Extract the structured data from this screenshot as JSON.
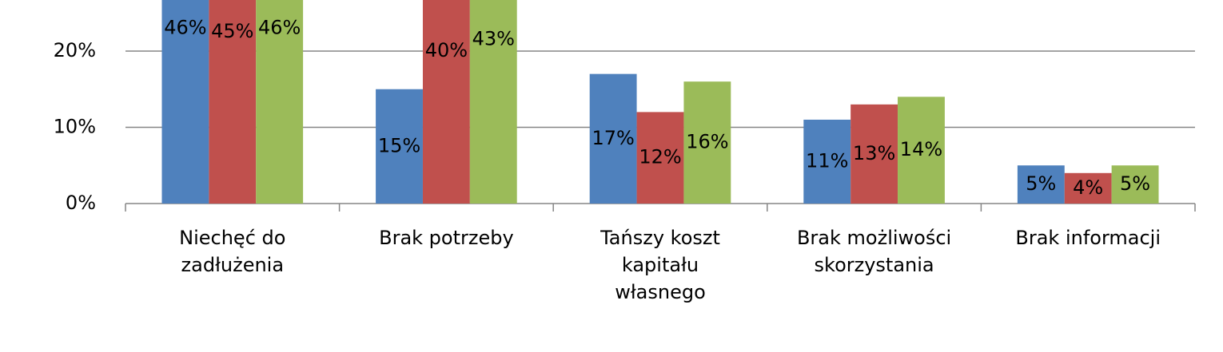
{
  "chart_data": {
    "type": "bar",
    "categories": [
      "Niechęć do\nzadłużenia",
      "Brak potrzeby",
      "Tańszy koszt\nkapitału\nwłasnego",
      "Brak możliwości\nskorzystania",
      "Brak informacji"
    ],
    "series": [
      {
        "color": "#4f81bd",
        "values": [
          46,
          15,
          17,
          11,
          5
        ],
        "value_labels": [
          "46%",
          "15%",
          "17%",
          "11%",
          "5%"
        ]
      },
      {
        "color": "#c0504d",
        "values": [
          45,
          40,
          12,
          13,
          4
        ],
        "value_labels": [
          "45%",
          "40%",
          "12%",
          "13%",
          "4%"
        ]
      },
      {
        "color": "#9bbb59",
        "values": [
          46,
          43,
          16,
          14,
          5
        ],
        "value_labels": [
          "46%",
          "43%",
          "16%",
          "14%",
          "5%"
        ]
      }
    ],
    "ylim": [
      0,
      26.7
    ],
    "yticks": [
      {
        "value": 0,
        "label": "0%"
      },
      {
        "value": 10,
        "label": "10%"
      },
      {
        "value": 20,
        "label": "20%"
      }
    ],
    "grid": true
  }
}
